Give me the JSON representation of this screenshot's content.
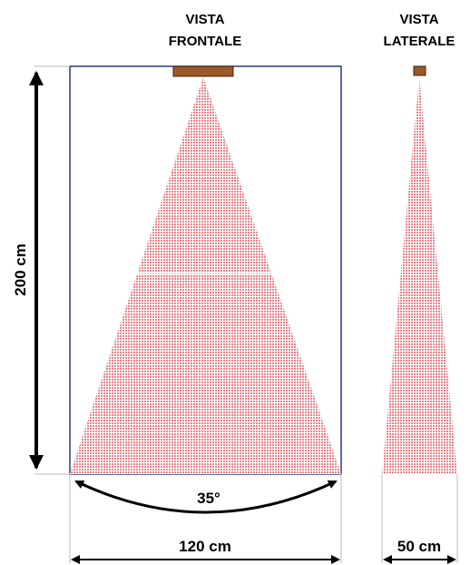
{
  "front_view": {
    "title_line1": "VISTA",
    "title_line2": "FRONTALE",
    "height_label": "200 cm",
    "width_label": "120 cm",
    "angle_label": "35°"
  },
  "side_view": {
    "title_line1": "VISTA",
    "title_line2": "LATERALE",
    "width_label": "50 cm"
  },
  "colors": {
    "cone": "#f0a0a8",
    "sensor": "#9b5a2a",
    "frame": "#2a3c78",
    "arrow": "#000000",
    "guide": "#bbbbbb"
  }
}
